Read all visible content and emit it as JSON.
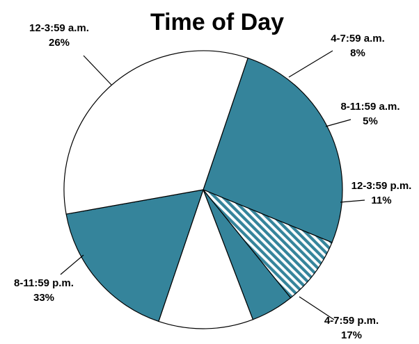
{
  "chart_data": {
    "type": "pie",
    "title": "Time of Day",
    "slices": [
      {
        "label": "12-3:59 a.m.",
        "value": 26,
        "display": "26%",
        "fill": "#35849b"
      },
      {
        "label": "4-7:59 a.m.",
        "value": 8,
        "display": "8%",
        "fill": "hatched"
      },
      {
        "label": "8-11:59 a.m.",
        "value": 5,
        "display": "5%",
        "fill": "#35849b"
      },
      {
        "label": "12-3:59 p.m.",
        "value": 11,
        "display": "11%",
        "fill": "#ffffff"
      },
      {
        "label": "4-7:59 p.m.",
        "value": 17,
        "display": "17%",
        "fill": "#35849b"
      },
      {
        "label": "8-11:59 p.m.",
        "value": 33,
        "display": "33%",
        "fill": "#ffffff"
      }
    ]
  },
  "colors": {
    "teal": "#35849b",
    "white": "#ffffff",
    "outline": "#000000"
  }
}
